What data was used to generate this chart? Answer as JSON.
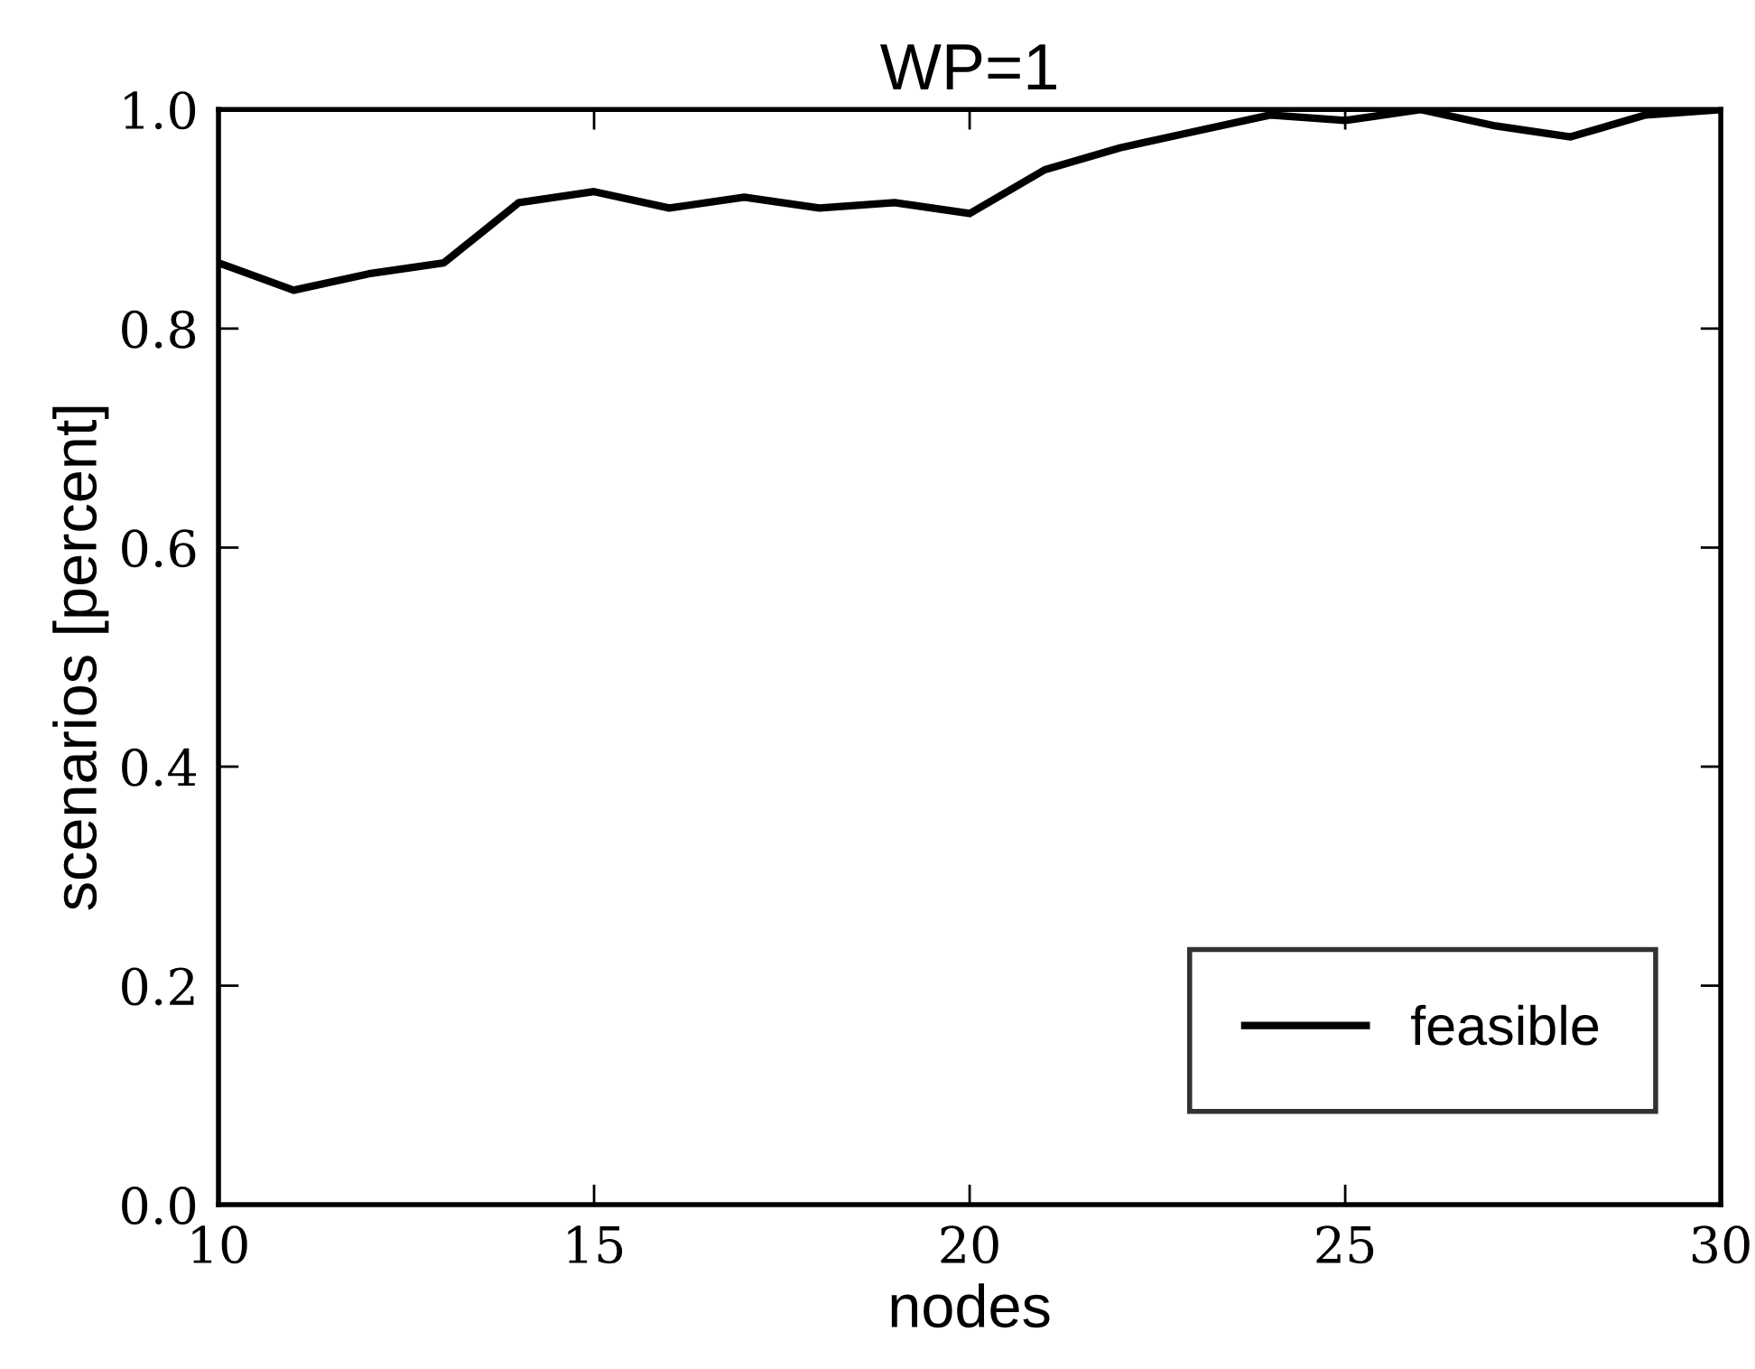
{
  "chart_data": {
    "type": "line",
    "title": "WP=1",
    "xlabel": "nodes",
    "ylabel": "scenarios [percent]",
    "x": [
      10,
      11,
      12,
      13,
      14,
      15,
      16,
      17,
      18,
      19,
      20,
      21,
      22,
      23,
      24,
      25,
      26,
      27,
      28,
      29,
      30
    ],
    "series": [
      {
        "name": "feasible",
        "color": "#000000",
        "values": [
          0.86,
          0.835,
          0.85,
          0.86,
          0.915,
          0.925,
          0.91,
          0.92,
          0.91,
          0.915,
          0.905,
          0.945,
          0.965,
          0.98,
          0.995,
          0.99,
          1.0,
          0.985,
          0.975,
          0.995,
          1.0
        ]
      }
    ],
    "xlim": [
      10,
      30
    ],
    "xticks": [
      10,
      15,
      20,
      25,
      30
    ],
    "ylim": [
      0.0,
      1.0
    ],
    "yticks": [
      {
        "value": 0.0,
        "label": "0.0"
      },
      {
        "value": 0.2,
        "label": "0.2"
      },
      {
        "value": 0.4,
        "label": "0.4"
      },
      {
        "value": 0.6,
        "label": "0.6"
      },
      {
        "value": 0.8,
        "label": "0.8"
      },
      {
        "value": 1.0,
        "label": "1.0"
      }
    ],
    "grid": false,
    "legend": "lower right",
    "marker": "none",
    "line_style": "solid"
  }
}
